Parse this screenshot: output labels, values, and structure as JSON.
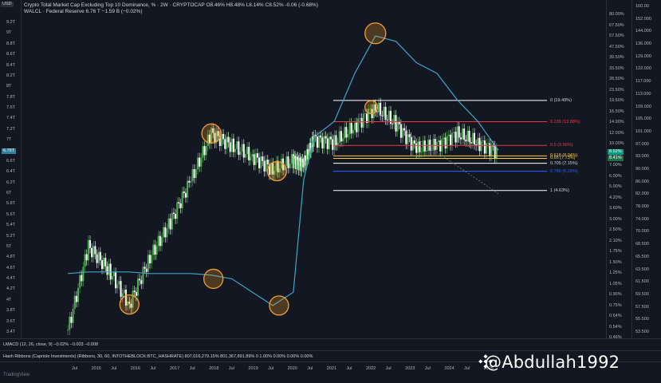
{
  "header": {
    "currency": "USD",
    "line1": "Crypto Total Market Cap Excluding Top 10 Dominance, % · 2W · CRYPTOCAP  O8.46%  H8.48%  L8.14%  C8.52%  -0.06 (-0.68%)",
    "line2": "WALCL · Federal Reserve  6.76 T  −1.59 B (−0.02%)"
  },
  "left_axis": {
    "ticks": [
      "9.2T",
      "9T",
      "8.8T",
      "8.6T",
      "8.4T",
      "8.2T",
      "8T",
      "7.8T",
      "7.6T",
      "7.4T",
      "7.2T",
      "7T",
      "6.8T",
      "6.6T",
      "6.4T",
      "6.2T",
      "6T",
      "5.8T",
      "5.6T",
      "5.4T",
      "5.2T",
      "5T",
      "4.8T",
      "4.6T",
      "4.4T",
      "4.2T",
      "4T",
      "3.8T",
      "3.6T",
      "3.4T"
    ],
    "current_tag": "6.76T"
  },
  "right_axis_pct": {
    "ticks": [
      "80.00%",
      "67.50%",
      "57.50%",
      "47.50%",
      "39.50%",
      "33.50%",
      "28.50%",
      "23.50%",
      "19.50%",
      "16.50%",
      "14.00%",
      "12.00%",
      "10.00%",
      "8.50%",
      "7.00%",
      "6.00%",
      "5.00%",
      "4.20%",
      "3.60%",
      "3.00%",
      "2.50%",
      "2.10%",
      "1.75%",
      "1.50%",
      "1.25%",
      "1.05%",
      "0.90%",
      "0.75%",
      "0.64%",
      "0.54%",
      "0.46%"
    ],
    "current_tags": [
      "8.52%",
      "8.41%"
    ]
  },
  "right_axis_idx": {
    "ticks": [
      "160.00",
      "152.000",
      "144.000",
      "136.000",
      "129.000",
      "122.000",
      "117.000",
      "113.000",
      "109.000",
      "105.000",
      "101.000",
      "97.000",
      "93.000",
      "90.000",
      "86.000",
      "82.000",
      "78.000",
      "74.000",
      "70.000",
      "68.500",
      "65.500",
      "63.500",
      "61.500",
      "59.500",
      "57.500",
      "55.500",
      "53.500"
    ]
  },
  "x_axis": {
    "labels": [
      "Jul",
      "2015",
      "Jul",
      "2016",
      "Jul",
      "2017",
      "Jul",
      "2018",
      "Jul",
      "2019",
      "Jul",
      "2020",
      "Jul",
      "2021",
      "Jul",
      "2022",
      "Jul",
      "2023",
      "Jul",
      "2024",
      "Jul",
      "2025"
    ]
  },
  "fib_levels": [
    {
      "label": "0 (19.49%)",
      "color": "#ffffff"
    },
    {
      "label": "0.236 (13.88%)",
      "color": "#f23645"
    },
    {
      "label": "0.5 (9.50%)",
      "color": "#f23645"
    },
    {
      "label": "0.618 (8.04%)",
      "color": "#f7c948"
    },
    {
      "label": "0.65 (7.73%)",
      "color": "#f7c948"
    },
    {
      "label": "0.705 (7.15%)",
      "color": "#ffffff"
    },
    {
      "label": "0.786 (6.29%)",
      "color": "#2962ff"
    },
    {
      "label": "1 (4.63%)",
      "color": "#ffffff"
    }
  ],
  "panes": {
    "lmacd": "LMACD (12, 26, close, 9)  −0.02%  −0.003  −0.008",
    "hash_ribbons": "Hash Ribbons (Capriole Investments) (Ribbons, 30, 60, INTOTHEBLOCK:BTC_HASHRATE)  807,016,279.15%  801,367,891.89%  0  1.00%  0.00%  0.00%  0.00%"
  },
  "watermark": "@Abdullah1992",
  "branding": "TradingView",
  "chart_data": {
    "type": "line",
    "title": "Crypto Total Market Cap Excluding Top 10 Dominance, % vs Federal Reserve WALCL",
    "xlabel": "",
    "ylabel": "",
    "x": [
      2014.5,
      2015.0,
      2015.5,
      2016.0,
      2016.5,
      2017.0,
      2017.5,
      2018.0,
      2018.5,
      2019.0,
      2019.5,
      2020.0,
      2020.25,
      2020.5,
      2021.0,
      2021.5,
      2022.0,
      2022.5,
      2023.0,
      2023.5,
      2024.0,
      2024.5,
      2025.0
    ],
    "series": [
      {
        "name": "WALCL · Federal Reserve",
        "unit": "USD T",
        "values": [
          4.45,
          4.48,
          4.48,
          4.48,
          4.45,
          4.45,
          4.45,
          4.42,
          4.35,
          4.1,
          3.85,
          4.1,
          6.2,
          7.0,
          7.3,
          8.2,
          8.9,
          8.8,
          8.4,
          8.2,
          7.7,
          7.3,
          6.76
        ]
      },
      {
        "name": "Crypto Total Market Cap Excluding Top 10 Dominance, %",
        "unit": "%",
        "values": [
          0.5,
          1.9,
          1.3,
          0.75,
          1.6,
          2.8,
          5.5,
          11.5,
          9.5,
          8.0,
          6.5,
          7.5,
          7.0,
          10.5,
          10.0,
          13.0,
          17.5,
          13.5,
          9.0,
          9.5,
          11.5,
          10.0,
          8.52
        ]
      }
    ],
    "fib_retracement": [
      {
        "level": 0,
        "value_pct": 19.49
      },
      {
        "level": 0.236,
        "value_pct": 13.88
      },
      {
        "level": 0.5,
        "value_pct": 9.5
      },
      {
        "level": 0.618,
        "value_pct": 8.04
      },
      {
        "level": 0.65,
        "value_pct": 7.73
      },
      {
        "level": 0.705,
        "value_pct": 7.15
      },
      {
        "level": 0.786,
        "value_pct": 6.29
      },
      {
        "level": 1,
        "value_pct": 4.63
      }
    ],
    "ylim_left_T": [
      3.4,
      9.2
    ],
    "ylim_right_pct": [
      0.46,
      80.0
    ],
    "grid": false,
    "scale": "log"
  }
}
